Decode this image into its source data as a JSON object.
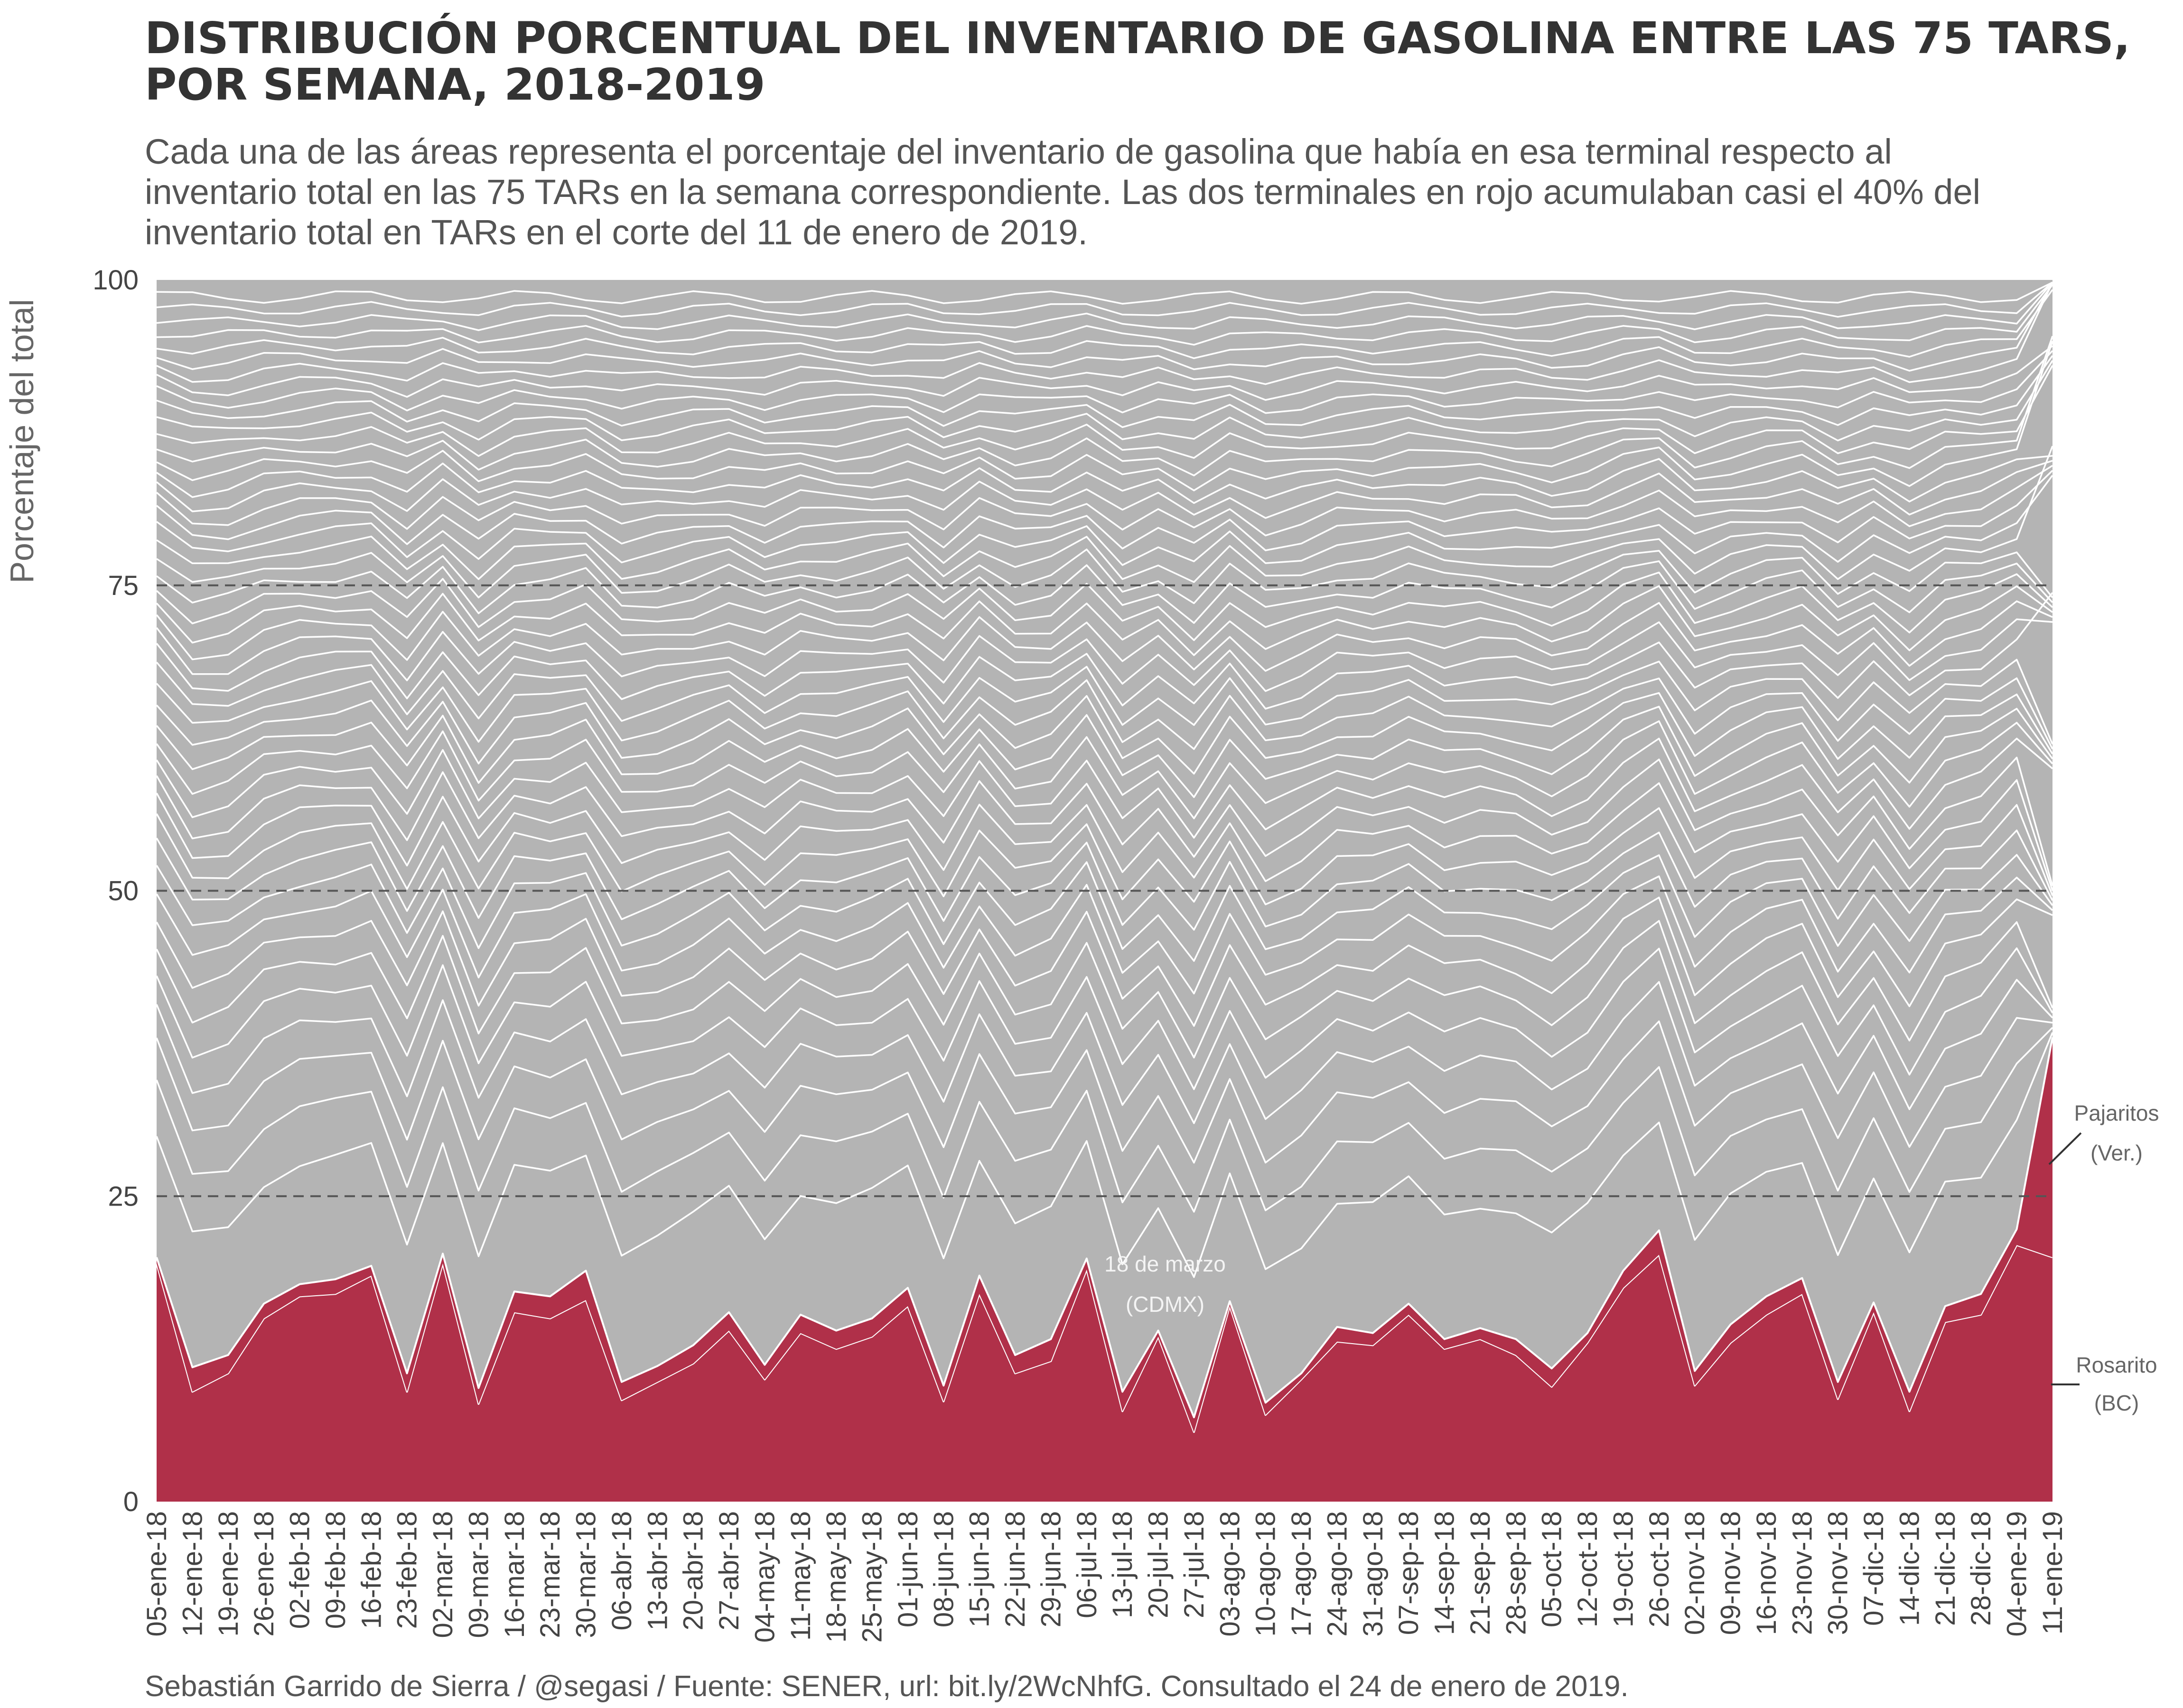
{
  "chart_data": {
    "type": "area",
    "stacked": true,
    "normalized_percent": true,
    "title_lines": [
      "DISTRIBUCIÓN PORCENTUAL DEL INVENTARIO DE GASOLINA ENTRE LAS 75 TARS,",
      "POR SEMANA, 2018-2019"
    ],
    "subtitle_lines": [
      "Cada una de las áreas representa el porcentaje del inventario de gasolina que había en esa terminal respecto al",
      "inventario total en las 75 TARs en la semana correspondiente. Las dos terminales en rojo acumulaban casi el 40% del",
      "inventario total en TARs en el corte del 11 de enero de 2019."
    ],
    "ylabel": "Porcentaje del total",
    "xlabel": "",
    "ylim": [
      0,
      100
    ],
    "yticks": [
      0,
      25,
      50,
      75,
      100
    ],
    "grid": "dashed horizontal lines at 25, 50 and 75",
    "categories": [
      "05-ene-18",
      "12-ene-18",
      "19-ene-18",
      "26-ene-18",
      "02-feb-18",
      "09-feb-18",
      "16-feb-18",
      "23-feb-18",
      "02-mar-18",
      "09-mar-18",
      "16-mar-18",
      "23-mar-18",
      "30-mar-18",
      "06-abr-18",
      "13-abr-18",
      "20-abr-18",
      "27-abr-18",
      "04-may-18",
      "11-may-18",
      "18-may-18",
      "25-may-18",
      "01-jun-18",
      "08-jun-18",
      "15-jun-18",
      "22-jun-18",
      "29-jun-18",
      "06-jul-18",
      "13-jul-18",
      "20-jul-18",
      "27-jul-18",
      "03-ago-18",
      "10-ago-18",
      "17-ago-18",
      "24-ago-18",
      "31-ago-18",
      "07-sep-18",
      "14-sep-18",
      "21-sep-18",
      "28-sep-18",
      "05-oct-18",
      "12-oct-18",
      "19-oct-18",
      "26-oct-18",
      "02-nov-18",
      "09-nov-18",
      "16-nov-18",
      "23-nov-18",
      "30-nov-18",
      "07-dic-18",
      "14-dic-18",
      "21-dic-18",
      "28-dic-18",
      "04-ene-19",
      "11-ene-19"
    ],
    "series": [
      {
        "name": "Rosarito (BC)",
        "color": "#b03049",
        "values": [
          19.5,
          9,
          10.5,
          15,
          16.8,
          17,
          18.5,
          9,
          19.5,
          8,
          15.5,
          15,
          16.5,
          8.3,
          9.8,
          11.3,
          14,
          10,
          13.8,
          12.5,
          13.5,
          16,
          8.2,
          17,
          10.5,
          11.5,
          19,
          7.4,
          13.5,
          5.7,
          16,
          7.1,
          10,
          13.1,
          12.8,
          15.3,
          12.5,
          13.3,
          12,
          9.4,
          13,
          17.5,
          20.2,
          9.5,
          13,
          15.3,
          17,
          8.4,
          15.5,
          7.4,
          14.7,
          15.3,
          21,
          20
        ]
      },
      {
        "name": "Pajaritos (Ver.)",
        "color": "#b03049",
        "values": [
          0.5,
          2,
          1.5,
          1.2,
          1,
          1.2,
          0.8,
          1.5,
          0.8,
          1.3,
          1.7,
          1.8,
          2.4,
          1.5,
          1.3,
          1.5,
          1.5,
          1.2,
          1.5,
          1.5,
          1.5,
          1.5,
          1.3,
          1.5,
          1.5,
          1.8,
          0.9,
          1.6,
          0.5,
          1.2,
          0.4,
          1,
          0.5,
          1.2,
          1,
          0.9,
          0.8,
          0.9,
          1.3,
          1.5,
          0.8,
          1.4,
          2,
          1.2,
          1.5,
          1.5,
          1.3,
          1.4,
          0.8,
          1.6,
          1.3,
          1.7,
          1.3,
          18
        ]
      }
    ],
    "remaining_terminals": "73 other TARs stacked in grey (#b4b4b4) up to 100",
    "annotations": [
      {
        "text_lines": [
          "Pajaritos",
          "(Ver.)"
        ]
      },
      {
        "text_lines": [
          "Rosarito",
          "(BC)"
        ]
      },
      {
        "text_lines": [
          "18 de marzo",
          "(CDMX)"
        ]
      }
    ],
    "colors": {
      "highlight": "#b03049",
      "others": "#b4b4b4",
      "lines": "#ffffff",
      "grid": "#555555"
    }
  },
  "caption": "Sebastián Garrido de Sierra / @segasi / Fuente: SENER, url: bit.ly/2WcNhfG. Consultado el 24 de enero de 2019."
}
